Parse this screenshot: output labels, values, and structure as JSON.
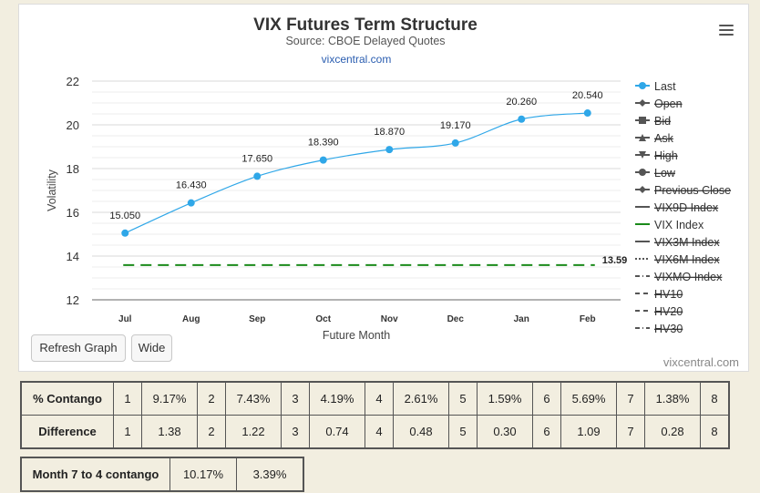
{
  "chart": {
    "title": "VIX Futures Term Structure",
    "subtitle": "Source: CBOE Delayed Quotes",
    "link": "vixcentral.com",
    "watermark": "vixcentral.com"
  },
  "chart_data": {
    "type": "line",
    "xlabel": "Future Month",
    "ylabel": "Volatility",
    "ylim": [
      12,
      22
    ],
    "yticks": [
      "12",
      "14",
      "16",
      "18",
      "20",
      "22"
    ],
    "grid": true,
    "legend_position": "right",
    "categories": [
      "Jul",
      "Aug",
      "Sep",
      "Oct",
      "Nov",
      "Dec",
      "Jan",
      "Feb"
    ],
    "series": [
      {
        "name": "Last",
        "color": "#2fa7e8",
        "values": [
          15.05,
          16.43,
          17.65,
          18.39,
          18.87,
          19.17,
          20.26,
          20.54
        ],
        "labels": [
          "15.050",
          "16.430",
          "17.650",
          "18.390",
          "18.870",
          "19.170",
          "20.260",
          "20.540"
        ]
      },
      {
        "name": "VIX Index",
        "color": "#1a8a1a",
        "style": "dashed",
        "value": 13.59,
        "label": "13.59"
      }
    ],
    "legend": [
      {
        "name": "Last",
        "marker": "circle",
        "enabled": true
      },
      {
        "name": "Open",
        "marker": "diamond",
        "enabled": false
      },
      {
        "name": "Bid",
        "marker": "square",
        "enabled": false
      },
      {
        "name": "Ask",
        "marker": "triangle",
        "enabled": false
      },
      {
        "name": "High",
        "marker": "triangle-down",
        "enabled": false
      },
      {
        "name": "Low",
        "marker": "circle",
        "enabled": false
      },
      {
        "name": "Previous Close",
        "marker": "diamond",
        "enabled": false
      },
      {
        "name": "VIX9D Index",
        "marker": "line",
        "enabled": false
      },
      {
        "name": "VIX Index",
        "marker": "line",
        "enabled": true
      },
      {
        "name": "VIX3M Index",
        "marker": "line",
        "enabled": false
      },
      {
        "name": "VIX6M Index",
        "marker": "dotted",
        "enabled": false
      },
      {
        "name": "VIXMO Index",
        "marker": "dashdot",
        "enabled": false
      },
      {
        "name": "HV10",
        "marker": "dash",
        "enabled": false
      },
      {
        "name": "HV20",
        "marker": "dash",
        "enabled": false
      },
      {
        "name": "HV30",
        "marker": "dashdot",
        "enabled": false
      }
    ]
  },
  "buttons": {
    "refresh": "Refresh Graph",
    "wide": "Wide"
  },
  "contango_table": {
    "rows": [
      {
        "label": "% Contango",
        "cells": [
          [
            "1",
            "9.17%"
          ],
          [
            "2",
            "7.43%"
          ],
          [
            "3",
            "4.19%"
          ],
          [
            "4",
            "2.61%"
          ],
          [
            "5",
            "1.59%"
          ],
          [
            "6",
            "5.69%"
          ],
          [
            "7",
            "1.38%"
          ],
          [
            "8",
            ""
          ]
        ]
      },
      {
        "label": "Difference",
        "cells": [
          [
            "1",
            "1.38"
          ],
          [
            "2",
            "1.22"
          ],
          [
            "3",
            "0.74"
          ],
          [
            "4",
            "0.48"
          ],
          [
            "5",
            "0.30"
          ],
          [
            "6",
            "1.09"
          ],
          [
            "7",
            "0.28"
          ],
          [
            "8",
            ""
          ]
        ]
      }
    ]
  },
  "month_7_4": {
    "label": "Month 7 to 4 contango",
    "value1": "10.17%",
    "value2": "3.39%"
  }
}
